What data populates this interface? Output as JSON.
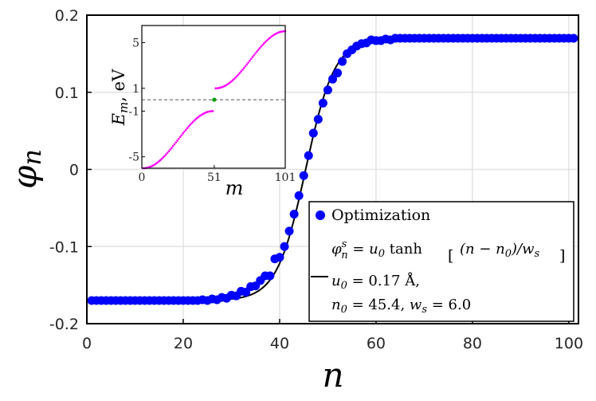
{
  "chart_data": {
    "main": {
      "type": "scatter",
      "xlabel": "n",
      "ylabel": "φn",
      "xlim": [
        0,
        102
      ],
      "ylim": [
        -0.2,
        0.2
      ],
      "xticks": [
        "0",
        "20",
        "40",
        "60",
        "80",
        "100"
      ],
      "yticks": [
        "-0.2",
        "-0.1",
        "0",
        "0.1",
        "0.2"
      ],
      "grid": true,
      "series": [
        {
          "name": "Optimization",
          "style": "markers",
          "color": "#0000ff",
          "x": [
            1,
            2,
            3,
            4,
            5,
            6,
            7,
            8,
            9,
            10,
            11,
            12,
            13,
            14,
            15,
            16,
            17,
            18,
            19,
            20,
            21,
            22,
            23,
            24,
            25,
            26,
            27,
            28,
            29,
            30,
            31,
            32,
            33,
            34,
            35,
            36,
            37,
            38,
            39,
            40,
            41,
            42,
            43,
            44,
            45,
            46,
            47,
            48,
            49,
            50,
            51,
            52,
            53,
            54,
            55,
            56,
            57,
            58,
            59,
            60,
            61,
            62,
            63,
            64,
            65,
            66,
            67,
            68,
            69,
            70,
            71,
            72,
            73,
            74,
            75,
            76,
            77,
            78,
            79,
            80,
            81,
            82,
            83,
            84,
            85,
            86,
            87,
            88,
            89,
            90,
            91,
            92,
            93,
            94,
            95,
            96,
            97,
            98,
            99,
            100,
            101
          ],
          "y": [
            -0.17,
            -0.17,
            -0.17,
            -0.17,
            -0.17,
            -0.17,
            -0.17,
            -0.17,
            -0.17,
            -0.17,
            -0.17,
            -0.17,
            -0.17,
            -0.17,
            -0.17,
            -0.17,
            -0.17,
            -0.17,
            -0.17,
            -0.17,
            -0.17,
            -0.17,
            -0.17,
            -0.169,
            -0.17,
            -0.168,
            -0.169,
            -0.166,
            -0.167,
            -0.163,
            -0.164,
            -0.158,
            -0.159,
            -0.152,
            -0.151,
            -0.144,
            -0.138,
            -0.138,
            -0.116,
            -0.114,
            -0.1,
            -0.08,
            -0.058,
            -0.034,
            -0.008,
            0.018,
            0.047,
            0.065,
            0.086,
            0.103,
            0.117,
            0.125,
            0.14,
            0.15,
            0.155,
            0.16,
            0.163,
            0.164,
            0.168,
            0.167,
            0.167,
            0.169,
            0.168,
            0.17,
            0.17,
            0.17,
            0.17,
            0.17,
            0.17,
            0.17,
            0.17,
            0.17,
            0.17,
            0.17,
            0.17,
            0.17,
            0.17,
            0.17,
            0.17,
            0.17,
            0.17,
            0.17,
            0.17,
            0.17,
            0.17,
            0.17,
            0.17,
            0.17,
            0.17,
            0.17,
            0.17,
            0.17,
            0.17,
            0.17,
            0.17,
            0.17,
            0.17,
            0.17,
            0.17,
            0.17,
            0.17
          ]
        },
        {
          "name": "φsn = u0 tanh[(n − n0)/ws]",
          "style": "line",
          "color": "#000000",
          "u0": 0.17,
          "n0": 45.4,
          "ws": 6.0
        }
      ]
    },
    "inset": {
      "type": "scatter",
      "xlabel": "m",
      "ylabel": "Em, eV",
      "xlim": [
        0,
        101
      ],
      "ylim": [
        -6,
        6.5
      ],
      "xticks": [
        "0",
        "51",
        "101"
      ],
      "yticks": [
        "5",
        "1",
        "-1",
        "-5"
      ],
      "reference_line_y": 0,
      "band_color": "#ff00ff",
      "midgap_point": {
        "m": 51,
        "E": 0,
        "color": "#00a000"
      },
      "lower_band": {
        "m_from": 1,
        "m_to": 50,
        "E_from": -6,
        "E_to": -1
      },
      "upper_band": {
        "m_from": 52,
        "m_to": 101,
        "E_from": 1,
        "E_to": 6
      }
    }
  },
  "legend": {
    "marker_label": "Optimization",
    "formula_lhs": "φ",
    "formula_sup": "s",
    "formula_sub": "n",
    "formula_eq": " = u",
    "formula_eq_sub": "0",
    "formula_tanh": " tanh",
    "formula_bracket": "(n − n",
    "formula_bracket_sub": "0",
    "formula_bracket_end": ")/w",
    "formula_bracket_end_sub": "s",
    "param_u0_name": "u",
    "param_u0_sub": "0",
    "param_u0_value": " = 0.17 Å,",
    "param_n0_name": "n",
    "param_n0_sub": "0",
    "param_n0_value": " = 45.4, ",
    "param_ws_name": "w",
    "param_ws_sub": "s",
    "param_ws_value": " = 6.0"
  }
}
